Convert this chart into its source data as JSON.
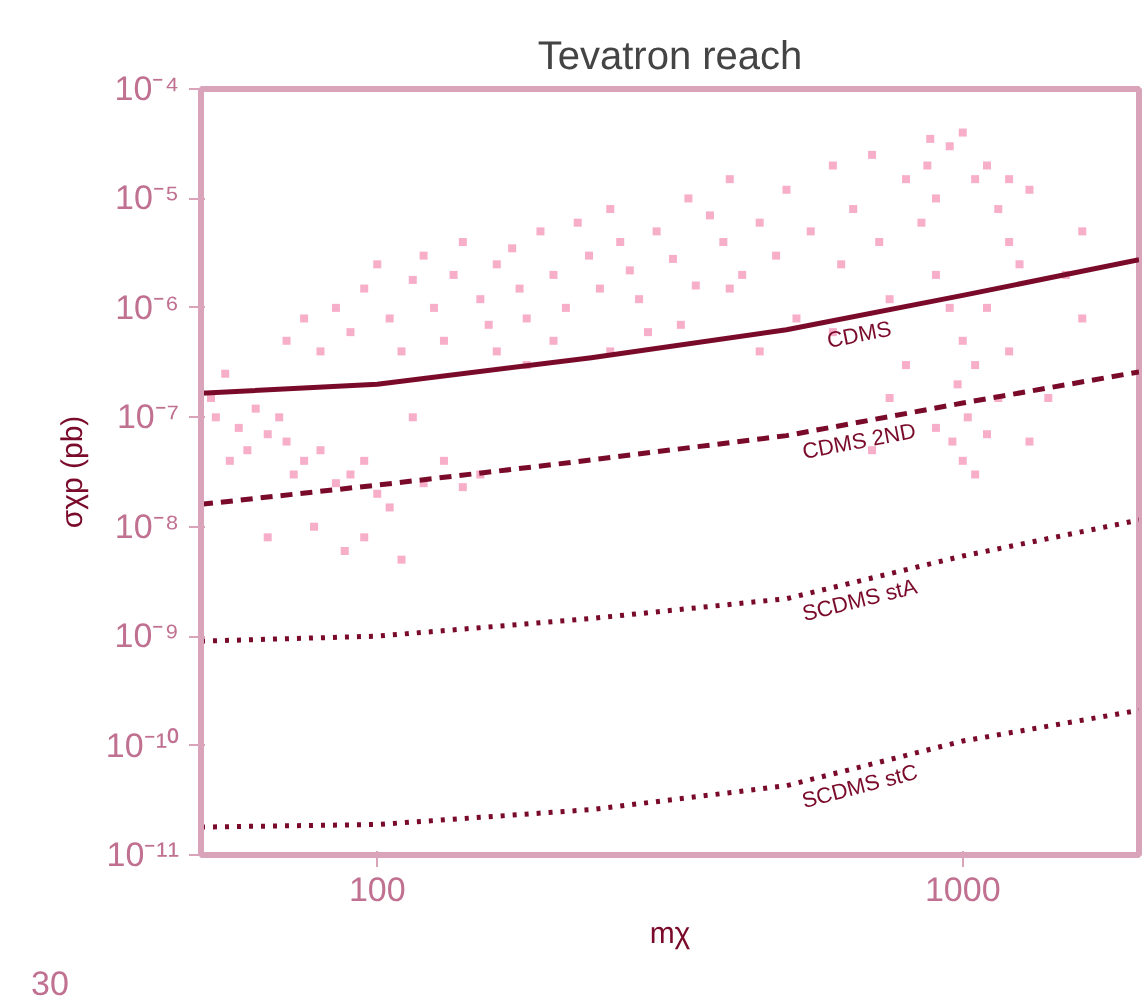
{
  "chart_data": {
    "type": "line",
    "title": "Tevatron reach",
    "xlabel": "mχ",
    "ylabel": "σχp (pb)",
    "log": "xy",
    "grid": false,
    "xlim": [
      50,
      2000
    ],
    "xticks": [
      100,
      1000
    ],
    "ylim": [
      1e-11,
      0.0001
    ],
    "yticks": [
      {
        "value": 0.0001,
        "label": "10⁻⁴"
      },
      {
        "value": 1e-05,
        "label": "10⁻⁵"
      },
      {
        "value": 1e-06,
        "label": "10⁻⁶"
      },
      {
        "value": 1e-07,
        "label": "10⁻⁷"
      },
      {
        "value": 1e-08,
        "label": "10⁻⁸"
      },
      {
        "value": 1e-09,
        "label": "10⁻⁹"
      },
      {
        "value": 1e-10,
        "label": "10⁻¹⁰"
      },
      {
        "value": 1e-11,
        "label": "10⁻¹¹"
      }
    ],
    "annotations": [
      "30"
    ],
    "series": [
      {
        "type": "scatter",
        "color": "#f48cb0",
        "marker": "square",
        "x": [
          52,
          55,
          53,
          58,
          62,
          65,
          60,
          70,
          68,
          56,
          75,
          80,
          72,
          85,
          90,
          95,
          100,
          105,
          88,
          95,
          78,
          110,
          65,
          120,
          115,
          130,
          140,
          150,
          70,
          75,
          80,
          85,
          90,
          95,
          100,
          105,
          110,
          115,
          120,
          125,
          130,
          135,
          140,
          150,
          155,
          160,
          170,
          175,
          180,
          190,
          200,
          210,
          220,
          230,
          240,
          250,
          260,
          270,
          280,
          290,
          300,
          320,
          340,
          350,
          370,
          390,
          400,
          420,
          450,
          480,
          500,
          520,
          550,
          600,
          620,
          650,
          700,
          720,
          750,
          800,
          850,
          870,
          900,
          950,
          1000,
          1050,
          880,
          1100,
          1150,
          1200,
          1300,
          1600,
          400,
          450,
          600,
          330,
          200,
          250,
          160,
          180,
          900,
          950,
          1000,
          1050,
          980,
          1020,
          960,
          1000,
          1050,
          1100,
          1150,
          1200,
          1100,
          1250,
          1300,
          1500,
          1400,
          800,
          750,
          900,
          1200,
          1600,
          700
        ],
        "values": [
          1.5e-07,
          2.5e-07,
          1e-07,
          8e-08,
          1.2e-07,
          7e-08,
          5e-08,
          6e-08,
          1e-07,
          4e-08,
          4e-08,
          5e-08,
          3e-08,
          2.5e-08,
          3e-08,
          4e-08,
          2e-08,
          1.5e-08,
          6e-09,
          8e-09,
          1e-08,
          5e-09,
          8e-09,
          2.5e-08,
          1e-07,
          4e-08,
          2.3e-08,
          3e-08,
          5e-07,
          8e-07,
          4e-07,
          1e-06,
          6e-07,
          1.5e-06,
          2.5e-06,
          8e-07,
          4e-07,
          1.8e-06,
          3e-06,
          1e-06,
          5e-07,
          2e-06,
          4e-06,
          1.2e-06,
          7e-07,
          2.5e-06,
          3.5e-06,
          1.5e-06,
          8e-07,
          5e-06,
          2e-06,
          1e-06,
          6e-06,
          3e-06,
          1.5e-06,
          8e-06,
          4e-06,
          2.2e-06,
          1.2e-06,
          6e-07,
          5e-06,
          2.8e-06,
          1e-05,
          1.6e-06,
          7e-06,
          4e-06,
          1.5e-05,
          2e-06,
          6e-06,
          3e-06,
          1.2e-05,
          8e-07,
          5e-06,
          2e-05,
          2.5e-06,
          8e-06,
          2.5e-05,
          4e-06,
          1.2e-06,
          1.5e-05,
          6e-06,
          2e-05,
          1e-05,
          3e-05,
          4e-05,
          1.5e-05,
          3.5e-05,
          2e-05,
          8e-06,
          1.5e-05,
          1.2e-05,
          5e-06,
          1.5e-06,
          4e-07,
          6e-07,
          7e-07,
          5e-07,
          4e-07,
          4e-07,
          3e-07,
          2e-06,
          1e-06,
          5e-07,
          3e-07,
          2e-07,
          1e-07,
          6e-08,
          4e-08,
          3e-08,
          7e-08,
          1.5e-07,
          4e-07,
          1e-06,
          2.5e-06,
          6e-08,
          2e-06,
          1.5e-07,
          3e-07,
          1.5e-07,
          8e-08,
          4e-06,
          8e-07,
          5e-08
        ]
      },
      {
        "name": "CDMS",
        "color": "#7a0a2a",
        "line_style": "solid",
        "x": [
          50,
          100,
          232,
          500,
          1000,
          2000
        ],
        "values": [
          1.66e-07,
          2e-07,
          3.5e-07,
          6.3e-07,
          1.3e-06,
          2.75e-06
        ]
      },
      {
        "name": "CDMS 2ND",
        "color": "#7a0a2a",
        "line_style": "dashed",
        "x": [
          50,
          100,
          200,
          500,
          1000,
          2000
        ],
        "values": [
          1.6e-08,
          2.4e-08,
          3.7e-08,
          6.8e-08,
          1.35e-07,
          2.6e-07
        ]
      },
      {
        "name": "SCDMS stA",
        "color": "#7a0a2a",
        "line_style": "dotted",
        "x": [
          50,
          100,
          232,
          500,
          1000,
          2000
        ],
        "values": [
          9e-10,
          1e-09,
          1.45e-09,
          2.2e-09,
          5.4e-09,
          1.15e-08
        ]
      },
      {
        "name": "SCDMS stC",
        "color": "#7a0a2a",
        "line_style": "dotted",
        "x": [
          50,
          100,
          232,
          500,
          1000,
          2000
        ],
        "values": [
          1.8e-11,
          1.9e-11,
          2.6e-11,
          4.3e-11,
          1.1e-10,
          2.1e-10
        ]
      }
    ]
  }
}
